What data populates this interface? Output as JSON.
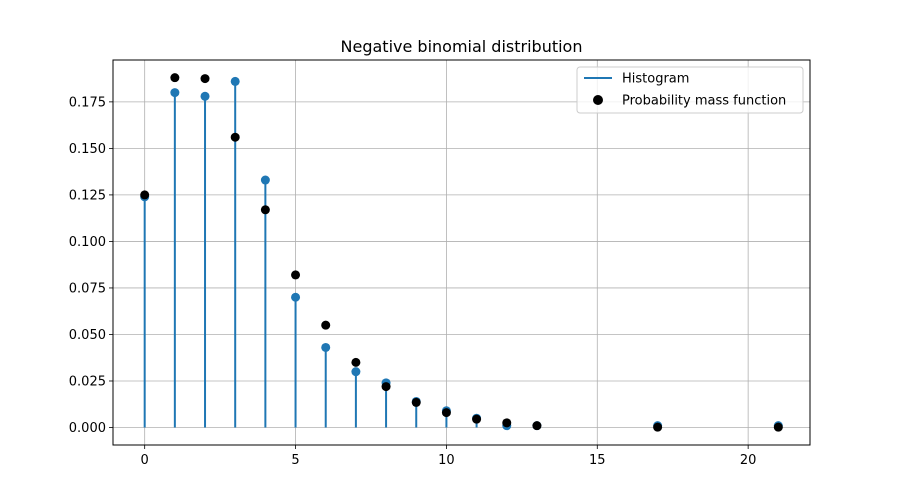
{
  "chart_data": {
    "type": "stem+scatter",
    "title": "Negative binomial distribution",
    "xlabel": "",
    "ylabel": "",
    "xlim": [
      -1.05,
      22.05
    ],
    "ylim": [
      -0.0094,
      0.1975
    ],
    "xticks": [
      0,
      5,
      10,
      15,
      20
    ],
    "yticks": [
      0.0,
      0.025,
      0.05,
      0.075,
      0.1,
      0.125,
      0.15,
      0.175
    ],
    "ytick_labels": [
      "0.000",
      "0.025",
      "0.050",
      "0.075",
      "0.100",
      "0.125",
      "0.150",
      "0.175"
    ],
    "grid": true,
    "legend_position": "top-right",
    "series": [
      {
        "name": "Histogram",
        "kind": "stem",
        "color": "#1f77b4",
        "x": [
          0,
          1,
          2,
          3,
          4,
          5,
          6,
          7,
          8,
          9,
          10,
          11,
          12,
          13,
          17,
          21
        ],
        "y": [
          0.124,
          0.18,
          0.178,
          0.186,
          0.133,
          0.07,
          0.043,
          0.03,
          0.024,
          0.014,
          0.009,
          0.005,
          0.001,
          0.001,
          0.001,
          0.001
        ]
      },
      {
        "name": "Probability mass function",
        "kind": "scatter",
        "color": "#000000",
        "x": [
          0,
          1,
          2,
          3,
          4,
          5,
          6,
          7,
          8,
          9,
          10,
          11,
          12,
          13,
          17,
          21
        ],
        "y": [
          0.125,
          0.188,
          0.1875,
          0.156,
          0.117,
          0.082,
          0.055,
          0.035,
          0.022,
          0.0135,
          0.008,
          0.0045,
          0.0025,
          0.001,
          0.0002,
          0.0002
        ]
      }
    ]
  }
}
